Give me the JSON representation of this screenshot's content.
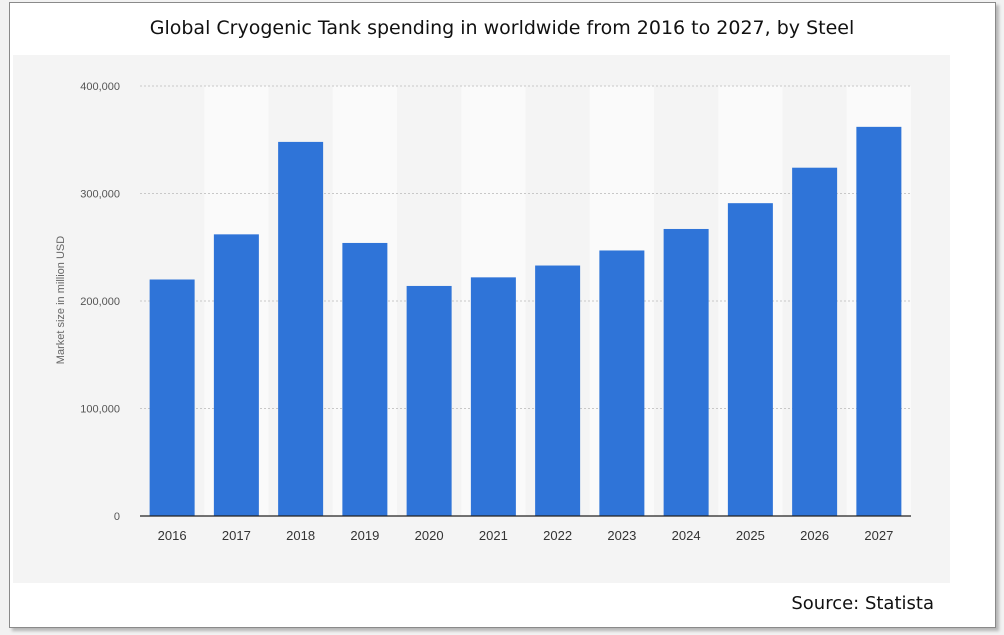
{
  "chart_data": {
    "type": "bar",
    "title": "Global Cryogenic Tank spending in worldwide from 2016 to 2027, by Steel",
    "xlabel": "",
    "ylabel": "Market size in million USD",
    "categories": [
      "2016",
      "2017",
      "2018",
      "2019",
      "2020",
      "2021",
      "2022",
      "2023",
      "2024",
      "2025",
      "2026",
      "2027"
    ],
    "values": [
      220000,
      262000,
      348000,
      254000,
      214000,
      222000,
      233000,
      247000,
      267000,
      291000,
      324000,
      362000
    ],
    "ylim": [
      0,
      400000
    ],
    "yticks": [
      0,
      100000,
      200000,
      300000,
      400000
    ],
    "ytick_labels": [
      "0",
      "100,000",
      "200,000",
      "300,000",
      "400,000"
    ],
    "grid": true,
    "bar_color": "#2f74d8",
    "source": "Source: Statista"
  }
}
